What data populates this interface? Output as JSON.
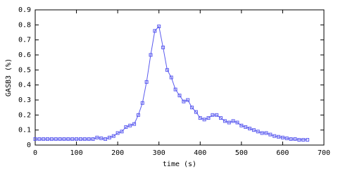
{
  "chart_data": {
    "type": "line",
    "xlabel": "time (s)",
    "ylabel": "GASB3 (%)",
    "x": [
      0,
      10,
      20,
      30,
      40,
      50,
      60,
      70,
      80,
      90,
      100,
      110,
      120,
      130,
      140,
      150,
      160,
      170,
      180,
      190,
      200,
      210,
      220,
      230,
      240,
      250,
      260,
      270,
      280,
      290,
      300,
      310,
      320,
      330,
      340,
      350,
      360,
      370,
      380,
      390,
      400,
      410,
      420,
      430,
      440,
      450,
      460,
      470,
      480,
      490,
      500,
      510,
      520,
      530,
      540,
      550,
      560,
      570,
      580,
      590,
      600,
      610,
      620,
      630,
      640,
      650,
      660
    ],
    "series": [
      {
        "color": "#5b5bef",
        "values": [
          0.04,
          0.04,
          0.04,
          0.04,
          0.04,
          0.04,
          0.04,
          0.04,
          0.04,
          0.04,
          0.04,
          0.04,
          0.04,
          0.04,
          0.04,
          0.05,
          0.045,
          0.04,
          0.05,
          0.06,
          0.08,
          0.09,
          0.12,
          0.13,
          0.14,
          0.2,
          0.28,
          0.42,
          0.6,
          0.76,
          0.79,
          0.65,
          0.5,
          0.45,
          0.37,
          0.33,
          0.29,
          0.3,
          0.25,
          0.22,
          0.18,
          0.17,
          0.18,
          0.2,
          0.2,
          0.18,
          0.16,
          0.15,
          0.16,
          0.15,
          0.13,
          0.12,
          0.11,
          0.1,
          0.09,
          0.08,
          0.08,
          0.07,
          0.06,
          0.055,
          0.05,
          0.045,
          0.04,
          0.04,
          0.035,
          0.035,
          0.035
        ]
      }
    ],
    "xlim": [
      0,
      700
    ],
    "xticks": [
      0,
      100,
      200,
      300,
      400,
      500,
      600,
      700
    ],
    "ylim": [
      0,
      0.9
    ],
    "yticks": [
      0,
      0.1,
      0.2,
      0.3,
      0.4,
      0.5,
      0.6,
      0.7,
      0.8,
      0.9
    ]
  }
}
